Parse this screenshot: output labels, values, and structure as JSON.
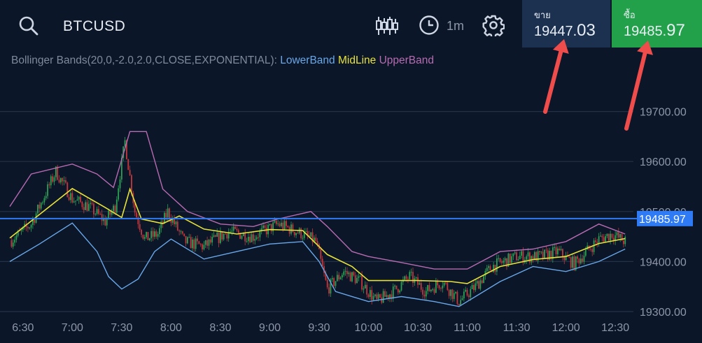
{
  "header": {
    "symbol": "BTCUSD",
    "interval": "1m",
    "icons": [
      "search-icon",
      "candlestick-icon",
      "clock-icon",
      "gear-icon"
    ]
  },
  "sell": {
    "label": "ขาย",
    "price_main": "19447.",
    "price_big": "03"
  },
  "buy": {
    "label": "ซื้อ",
    "price_main": "19485.",
    "price_big": "97"
  },
  "indicator": {
    "name": "Bollinger Bands(20,0,-2.0,2.0,CLOSE,EXPONENTIAL):",
    "lower": "LowerBand",
    "mid": "MidLine",
    "upper": "UpperBand"
  },
  "colors": {
    "background": "#0b1628",
    "up_candle": "#2e9f55",
    "down_candle": "#c2383c",
    "lower_band": "#6aa7e8",
    "mid_line": "#e7e23a",
    "upper_band": "#b76bb0",
    "current_price_line": "#2f7bf5",
    "annotation_arrow": "#ef4c4c"
  },
  "chart_data": {
    "type": "candlestick",
    "current_price": 19485.97,
    "current_price_label": "19485.97",
    "y_ticks": [
      19700,
      19600,
      19500,
      19400,
      19300
    ],
    "y_tick_labels": [
      "19700.00",
      "19600.00",
      "19500.00",
      "19400.00",
      "19300.00"
    ],
    "ylim": [
      19286,
      19814
    ],
    "x_ticks": [
      "6:30",
      "7:00",
      "7:30",
      "8:00",
      "8:30",
      "9:00",
      "9:30",
      "10:00",
      "10:30",
      "11:00",
      "11:30",
      "12:00",
      "12:30"
    ],
    "x_tick_minutes": [
      390,
      420,
      450,
      480,
      510,
      540,
      570,
      600,
      630,
      660,
      690,
      720,
      750
    ],
    "xlim": [
      382,
      761
    ],
    "mid_line": [
      [
        382,
        19447
      ],
      [
        400,
        19494
      ],
      [
        420,
        19546
      ],
      [
        440,
        19508
      ],
      [
        450,
        19488
      ],
      [
        455,
        19545
      ],
      [
        462,
        19485
      ],
      [
        475,
        19476
      ],
      [
        485,
        19491
      ],
      [
        500,
        19465
      ],
      [
        520,
        19455
      ],
      [
        540,
        19464
      ],
      [
        560,
        19462
      ],
      [
        575,
        19414
      ],
      [
        590,
        19390
      ],
      [
        600,
        19362
      ],
      [
        610,
        19362
      ],
      [
        630,
        19362
      ],
      [
        650,
        19360
      ],
      [
        660,
        19356
      ],
      [
        680,
        19390
      ],
      [
        700,
        19404
      ],
      [
        720,
        19410
      ],
      [
        740,
        19436
      ],
      [
        756,
        19446
      ]
    ],
    "upper_band": [
      [
        382,
        19510
      ],
      [
        395,
        19575
      ],
      [
        420,
        19595
      ],
      [
        435,
        19575
      ],
      [
        445,
        19548
      ],
      [
        455,
        19660
      ],
      [
        465,
        19660
      ],
      [
        475,
        19545
      ],
      [
        490,
        19500
      ],
      [
        510,
        19475
      ],
      [
        530,
        19470
      ],
      [
        545,
        19485
      ],
      [
        565,
        19500
      ],
      [
        575,
        19470
      ],
      [
        590,
        19420
      ],
      [
        600,
        19410
      ],
      [
        620,
        19398
      ],
      [
        640,
        19385
      ],
      [
        660,
        19385
      ],
      [
        680,
        19420
      ],
      [
        700,
        19425
      ],
      [
        720,
        19440
      ],
      [
        740,
        19475
      ],
      [
        756,
        19455
      ]
    ],
    "lower_band": [
      [
        382,
        19400
      ],
      [
        400,
        19435
      ],
      [
        420,
        19477
      ],
      [
        435,
        19420
      ],
      [
        442,
        19370
      ],
      [
        450,
        19345
      ],
      [
        460,
        19365
      ],
      [
        470,
        19420
      ],
      [
        480,
        19445
      ],
      [
        500,
        19405
      ],
      [
        520,
        19420
      ],
      [
        540,
        19435
      ],
      [
        560,
        19440
      ],
      [
        570,
        19400
      ],
      [
        580,
        19340
      ],
      [
        600,
        19320
      ],
      [
        620,
        19330
      ],
      [
        640,
        19320
      ],
      [
        655,
        19310
      ],
      [
        665,
        19330
      ],
      [
        680,
        19360
      ],
      [
        700,
        19390
      ],
      [
        720,
        19380
      ],
      [
        740,
        19400
      ],
      [
        756,
        19425
      ]
    ],
    "close_path": [
      [
        382,
        19440
      ],
      [
        395,
        19475
      ],
      [
        410,
        19580
      ],
      [
        420,
        19525
      ],
      [
        430,
        19510
      ],
      [
        440,
        19480
      ],
      [
        446,
        19510
      ],
      [
        452,
        19640
      ],
      [
        458,
        19500
      ],
      [
        464,
        19445
      ],
      [
        472,
        19455
      ],
      [
        478,
        19500
      ],
      [
        488,
        19440
      ],
      [
        500,
        19430
      ],
      [
        515,
        19460
      ],
      [
        530,
        19450
      ],
      [
        545,
        19475
      ],
      [
        560,
        19455
      ],
      [
        568,
        19440
      ],
      [
        575,
        19345
      ],
      [
        585,
        19380
      ],
      [
        595,
        19360
      ],
      [
        605,
        19320
      ],
      [
        615,
        19340
      ],
      [
        625,
        19370
      ],
      [
        635,
        19340
      ],
      [
        645,
        19360
      ],
      [
        655,
        19320
      ],
      [
        665,
        19350
      ],
      [
        675,
        19390
      ],
      [
        690,
        19410
      ],
      [
        705,
        19410
      ],
      [
        715,
        19420
      ],
      [
        725,
        19395
      ],
      [
        740,
        19445
      ],
      [
        748,
        19455
      ],
      [
        756,
        19440
      ]
    ]
  }
}
